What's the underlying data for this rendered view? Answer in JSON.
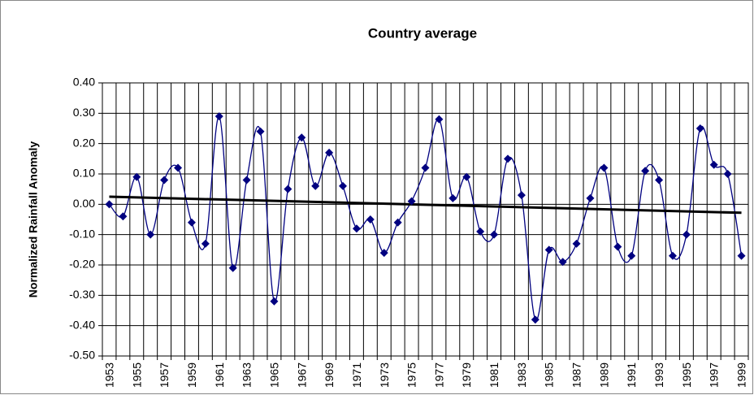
{
  "chart_data": {
    "type": "line",
    "title": "Country average",
    "y_label": "Normalized Rainfall Anomaly",
    "categories": [
      "1953",
      null,
      "1955",
      null,
      "1957",
      null,
      "1959",
      null,
      "1961",
      null,
      "1963",
      null,
      "1965",
      null,
      "1967",
      null,
      "1969",
      null,
      "1971",
      null,
      "1973",
      null,
      "1975",
      null,
      "1977",
      null,
      "1979",
      null,
      "1981",
      null,
      "1983",
      null,
      "1985",
      null,
      "1987",
      null,
      "1989",
      null,
      "1991",
      null,
      "1993",
      null,
      "1995",
      null,
      "1997",
      null,
      "1999"
    ],
    "values": [
      0.0,
      -0.04,
      0.09,
      -0.1,
      0.08,
      0.12,
      -0.06,
      -0.13,
      0.29,
      -0.21,
      0.08,
      0.24,
      -0.32,
      0.05,
      0.22,
      0.06,
      0.17,
      0.06,
      -0.08,
      -0.05,
      -0.16,
      -0.06,
      0.01,
      0.12,
      0.28,
      0.02,
      0.09,
      -0.09,
      -0.1,
      0.15,
      0.03,
      -0.38,
      -0.15,
      -0.19,
      -0.13,
      0.02,
      0.12,
      -0.14,
      -0.17,
      0.11,
      0.08,
      -0.17,
      -0.1,
      0.25,
      0.13,
      0.1,
      -0.17
    ],
    "color": "#000080",
    "trend": [
      0.025,
      -0.028
    ],
    "trend_color": "#000000",
    "ylim": [
      -0.5,
      0.4
    ],
    "yticks": [
      {
        "value": -0.5,
        "label": "-0.50"
      },
      {
        "value": -0.4,
        "label": "-0.40"
      },
      {
        "value": -0.3,
        "label": "-0.30"
      },
      {
        "value": -0.2,
        "label": "-0.20"
      },
      {
        "value": -0.1,
        "label": "-0.10"
      },
      {
        "value": 0,
        "label": "0.00"
      },
      {
        "value": 0.1,
        "label": "0.10"
      },
      {
        "value": 0.2,
        "label": "0.20"
      },
      {
        "value": 0.3,
        "label": "0.30"
      },
      {
        "value": 0.4,
        "label": "0.40"
      }
    ],
    "grid": true
  }
}
